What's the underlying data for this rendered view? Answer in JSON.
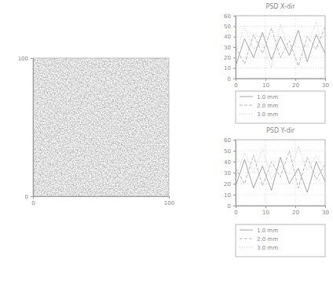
{
  "chart_data": [
    {
      "type": "image",
      "xlim": [
        0,
        100
      ],
      "ylim": [
        0,
        100
      ],
      "xticks": [
        0,
        100
      ],
      "yticks": [
        0,
        100
      ]
    },
    {
      "type": "line",
      "title": "PSD X-dir",
      "xlim": [
        0,
        30
      ],
      "ylim": [
        0,
        60
      ],
      "xticks": [
        0,
        10,
        20,
        30
      ],
      "yticks": [
        0,
        10,
        20,
        30,
        40,
        50,
        60
      ],
      "grid": true,
      "legend": "bottom",
      "x": [
        0,
        3,
        6,
        9,
        12,
        15,
        18,
        21,
        24,
        27,
        30
      ],
      "series": [
        {
          "name": "1.0 mm",
          "color": "#9a9a9a",
          "line_style": "solid",
          "values": [
            12,
            38,
            20,
            44,
            18,
            40,
            22,
            46,
            16,
            42,
            24
          ]
        },
        {
          "name": "2.0 mm",
          "color": "#b0b0b0",
          "line_style": "dashed",
          "values": [
            30,
            14,
            42,
            24,
            48,
            20,
            36,
            12,
            40,
            28,
            50
          ]
        },
        {
          "name": "3.0 mm",
          "color": "#c2c2c2",
          "line_style": "dotted",
          "values": [
            22,
            50,
            28,
            34,
            10,
            52,
            26,
            38,
            30,
            54,
            18
          ]
        }
      ]
    },
    {
      "type": "line",
      "title": "PSD Y-dir",
      "xlim": [
        0,
        30
      ],
      "ylim": [
        0,
        60
      ],
      "xticks": [
        0,
        10,
        20,
        30
      ],
      "yticks": [
        0,
        10,
        20,
        30,
        40,
        50,
        60
      ],
      "grid": true,
      "legend": "bottom",
      "x": [
        0,
        3,
        6,
        9,
        12,
        15,
        18,
        21,
        24,
        27,
        30
      ],
      "series": [
        {
          "name": "1.0 mm",
          "color": "#9a9a9a",
          "line_style": "solid",
          "values": [
            18,
            42,
            16,
            36,
            14,
            44,
            20,
            34,
            12,
            40,
            22
          ]
        },
        {
          "name": "2.0 mm",
          "color": "#b0b0b0",
          "line_style": "dashed",
          "values": [
            34,
            20,
            46,
            18,
            40,
            26,
            50,
            16,
            44,
            24,
            38
          ]
        },
        {
          "name": "3.0 mm",
          "color": "#c2c2c2",
          "line_style": "dotted",
          "values": [
            26,
            48,
            30,
            52,
            24,
            36,
            28,
            54,
            32,
            46,
            30
          ]
        }
      ]
    }
  ]
}
